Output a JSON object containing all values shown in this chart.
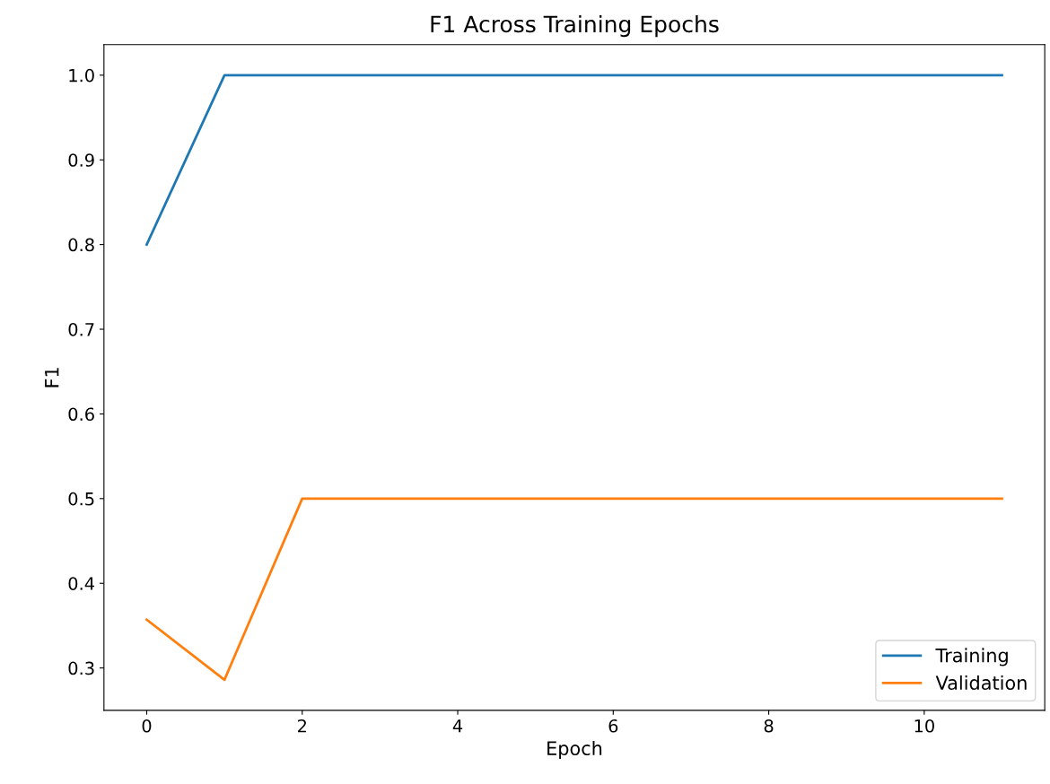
{
  "chart_data": {
    "type": "line",
    "title": "F1 Across Training Epochs",
    "xlabel": "Epoch",
    "ylabel": "F1",
    "x": [
      0,
      1,
      2,
      3,
      4,
      5,
      6,
      7,
      8,
      9,
      10,
      11
    ],
    "series": [
      {
        "name": "Training",
        "color": "#1f77b4",
        "values": [
          0.8,
          1.0,
          1.0,
          1.0,
          1.0,
          1.0,
          1.0,
          1.0,
          1.0,
          1.0,
          1.0,
          1.0
        ]
      },
      {
        "name": "Validation",
        "color": "#ff7f0e",
        "values": [
          0.357,
          0.286,
          0.5,
          0.5,
          0.5,
          0.5,
          0.5,
          0.5,
          0.5,
          0.5,
          0.5,
          0.5
        ]
      }
    ],
    "xlim": [
      -0.55,
      11.55
    ],
    "xticks": [
      0,
      2,
      4,
      6,
      8,
      10
    ],
    "ylim": [
      0.25,
      1.036
    ],
    "yticks": [
      {
        "value": 0.3,
        "label": "0.3"
      },
      {
        "value": 0.4,
        "label": "0.4"
      },
      {
        "value": 0.5,
        "label": "0.5"
      },
      {
        "value": 0.6,
        "label": "0.6"
      },
      {
        "value": 0.7,
        "label": "0.7"
      },
      {
        "value": 0.8,
        "label": "0.8"
      },
      {
        "value": 0.9,
        "label": "0.9"
      },
      {
        "value": 1.0,
        "label": "1.0"
      }
    ],
    "grid": false,
    "legend": "lower right",
    "marker": "none",
    "line_style": "solid"
  }
}
